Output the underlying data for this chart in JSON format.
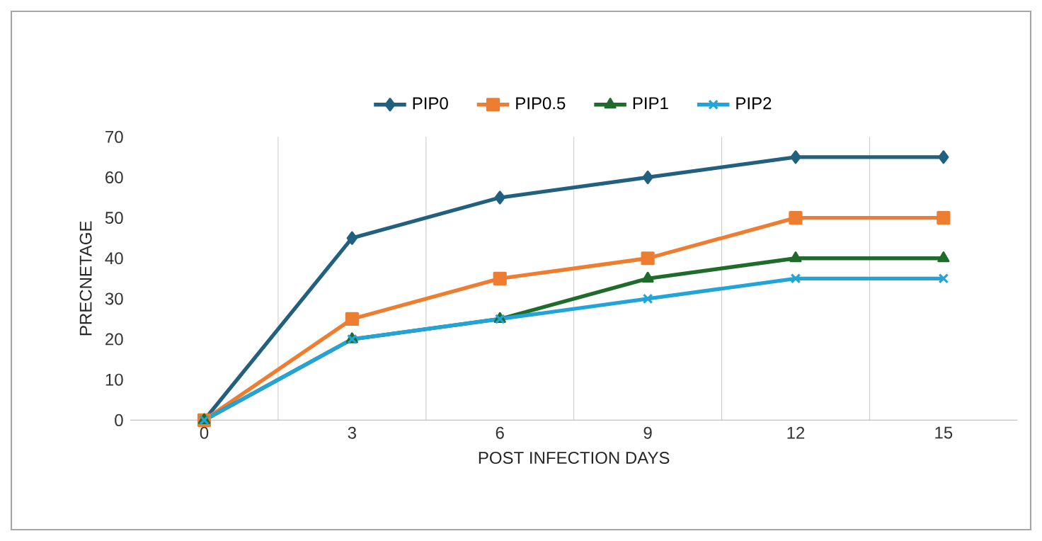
{
  "chart_data": {
    "type": "line",
    "xlabel": "POST INFECTION DAYS",
    "ylabel": "PRECNETAGE",
    "categories": [
      "0",
      "3",
      "6",
      "9",
      "12",
      "15"
    ],
    "series": [
      {
        "name": "PIP0",
        "color": "#21607f",
        "marker": "diamond",
        "values": [
          0,
          45,
          55,
          60,
          65,
          65
        ]
      },
      {
        "name": "PIP0.5",
        "color": "#ed7d31",
        "marker": "square",
        "values": [
          0,
          25,
          35,
          40,
          50,
          50
        ]
      },
      {
        "name": "PIP1",
        "color": "#1f6b2c",
        "marker": "triangle",
        "values": [
          0,
          20,
          25,
          35,
          40,
          40
        ]
      },
      {
        "name": "PIP2",
        "color": "#22a4d8",
        "marker": "cross",
        "values": [
          0,
          20,
          25,
          30,
          35,
          35
        ]
      }
    ],
    "ylim": [
      0,
      70
    ],
    "yticks": [
      0,
      10,
      20,
      30,
      40,
      50,
      60,
      70
    ],
    "grid": "x",
    "legend": "top",
    "line_style": "solid"
  }
}
